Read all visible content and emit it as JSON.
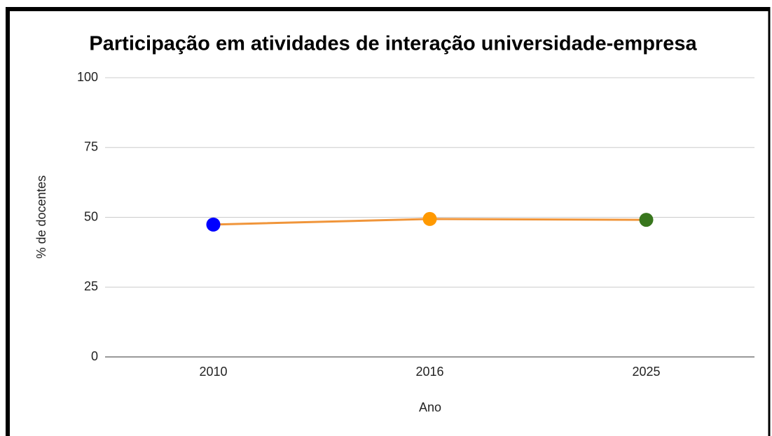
{
  "chart_data": {
    "type": "line",
    "title": "Participação em atividades de interação universidade-empresa",
    "x_label": "Ano",
    "y_label": "% de docentes",
    "categories": [
      "2010",
      "2016",
      "2025"
    ],
    "values": [
      47.4,
      49.4,
      49.1
    ],
    "line_color": "#f0953a",
    "point_colors": [
      "#0000ff",
      "#ff9900",
      "#38761d"
    ],
    "ylim": [
      0,
      100
    ],
    "yticks": [
      0,
      25,
      50,
      75,
      100
    ],
    "grid": true
  }
}
